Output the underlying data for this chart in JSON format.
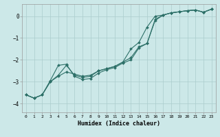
{
  "title": "",
  "xlabel": "Humidex (Indice chaleur)",
  "bg_color": "#cce8e8",
  "line_color": "#2d7068",
  "grid_color": "#aacccc",
  "xlim": [
    -0.5,
    23.5
  ],
  "ylim": [
    -4.4,
    0.55
  ],
  "yticks": [
    0,
    -1,
    -2,
    -3,
    -4
  ],
  "xticks": [
    0,
    1,
    2,
    3,
    4,
    5,
    6,
    7,
    8,
    9,
    10,
    11,
    12,
    13,
    14,
    15,
    16,
    17,
    18,
    19,
    20,
    21,
    22,
    23
  ],
  "line1_x": [
    0,
    1,
    2,
    3,
    4,
    5,
    6,
    7,
    8,
    9,
    10,
    11,
    12,
    13,
    14,
    15,
    16,
    17,
    18,
    19,
    20,
    21,
    22,
    23
  ],
  "line1_y": [
    -3.6,
    -3.75,
    -3.6,
    -3.0,
    -2.7,
    -2.25,
    -2.7,
    -2.8,
    -2.75,
    -2.5,
    -2.4,
    -2.3,
    -2.1,
    -1.9,
    -1.4,
    -1.25,
    -0.2,
    0.05,
    0.15,
    0.2,
    0.25,
    0.28,
    0.18,
    0.32
  ],
  "line2_x": [
    0,
    1,
    2,
    3,
    4,
    5,
    6,
    7,
    8,
    9,
    10,
    11,
    12,
    13,
    14,
    15,
    16,
    17,
    18,
    19,
    20,
    21,
    22,
    23
  ],
  "line2_y": [
    -3.6,
    -3.75,
    -3.6,
    -2.95,
    -2.25,
    -2.2,
    -2.75,
    -2.9,
    -2.85,
    -2.6,
    -2.45,
    -2.35,
    -2.15,
    -2.0,
    -1.45,
    -1.25,
    -0.15,
    0.05,
    0.15,
    0.2,
    0.25,
    0.28,
    0.18,
    0.32
  ],
  "line3_x": [
    0,
    1,
    2,
    3,
    4,
    5,
    6,
    7,
    8,
    9,
    10,
    11,
    12,
    13,
    14,
    15,
    16,
    17,
    18,
    19,
    20,
    21,
    22,
    23
  ],
  "line3_y": [
    -3.6,
    -3.75,
    -3.6,
    -3.0,
    -2.75,
    -2.55,
    -2.65,
    -2.75,
    -2.7,
    -2.5,
    -2.4,
    -2.3,
    -2.1,
    -1.5,
    -1.2,
    -0.5,
    0.0,
    0.05,
    0.15,
    0.2,
    0.25,
    0.28,
    0.18,
    0.32
  ],
  "ylabel_fontsize": 5.5,
  "xlabel_fontsize": 6.0,
  "xtick_fontsize": 4.5,
  "ytick_fontsize": 5.5,
  "linewidth": 0.8,
  "markersize": 2.0
}
